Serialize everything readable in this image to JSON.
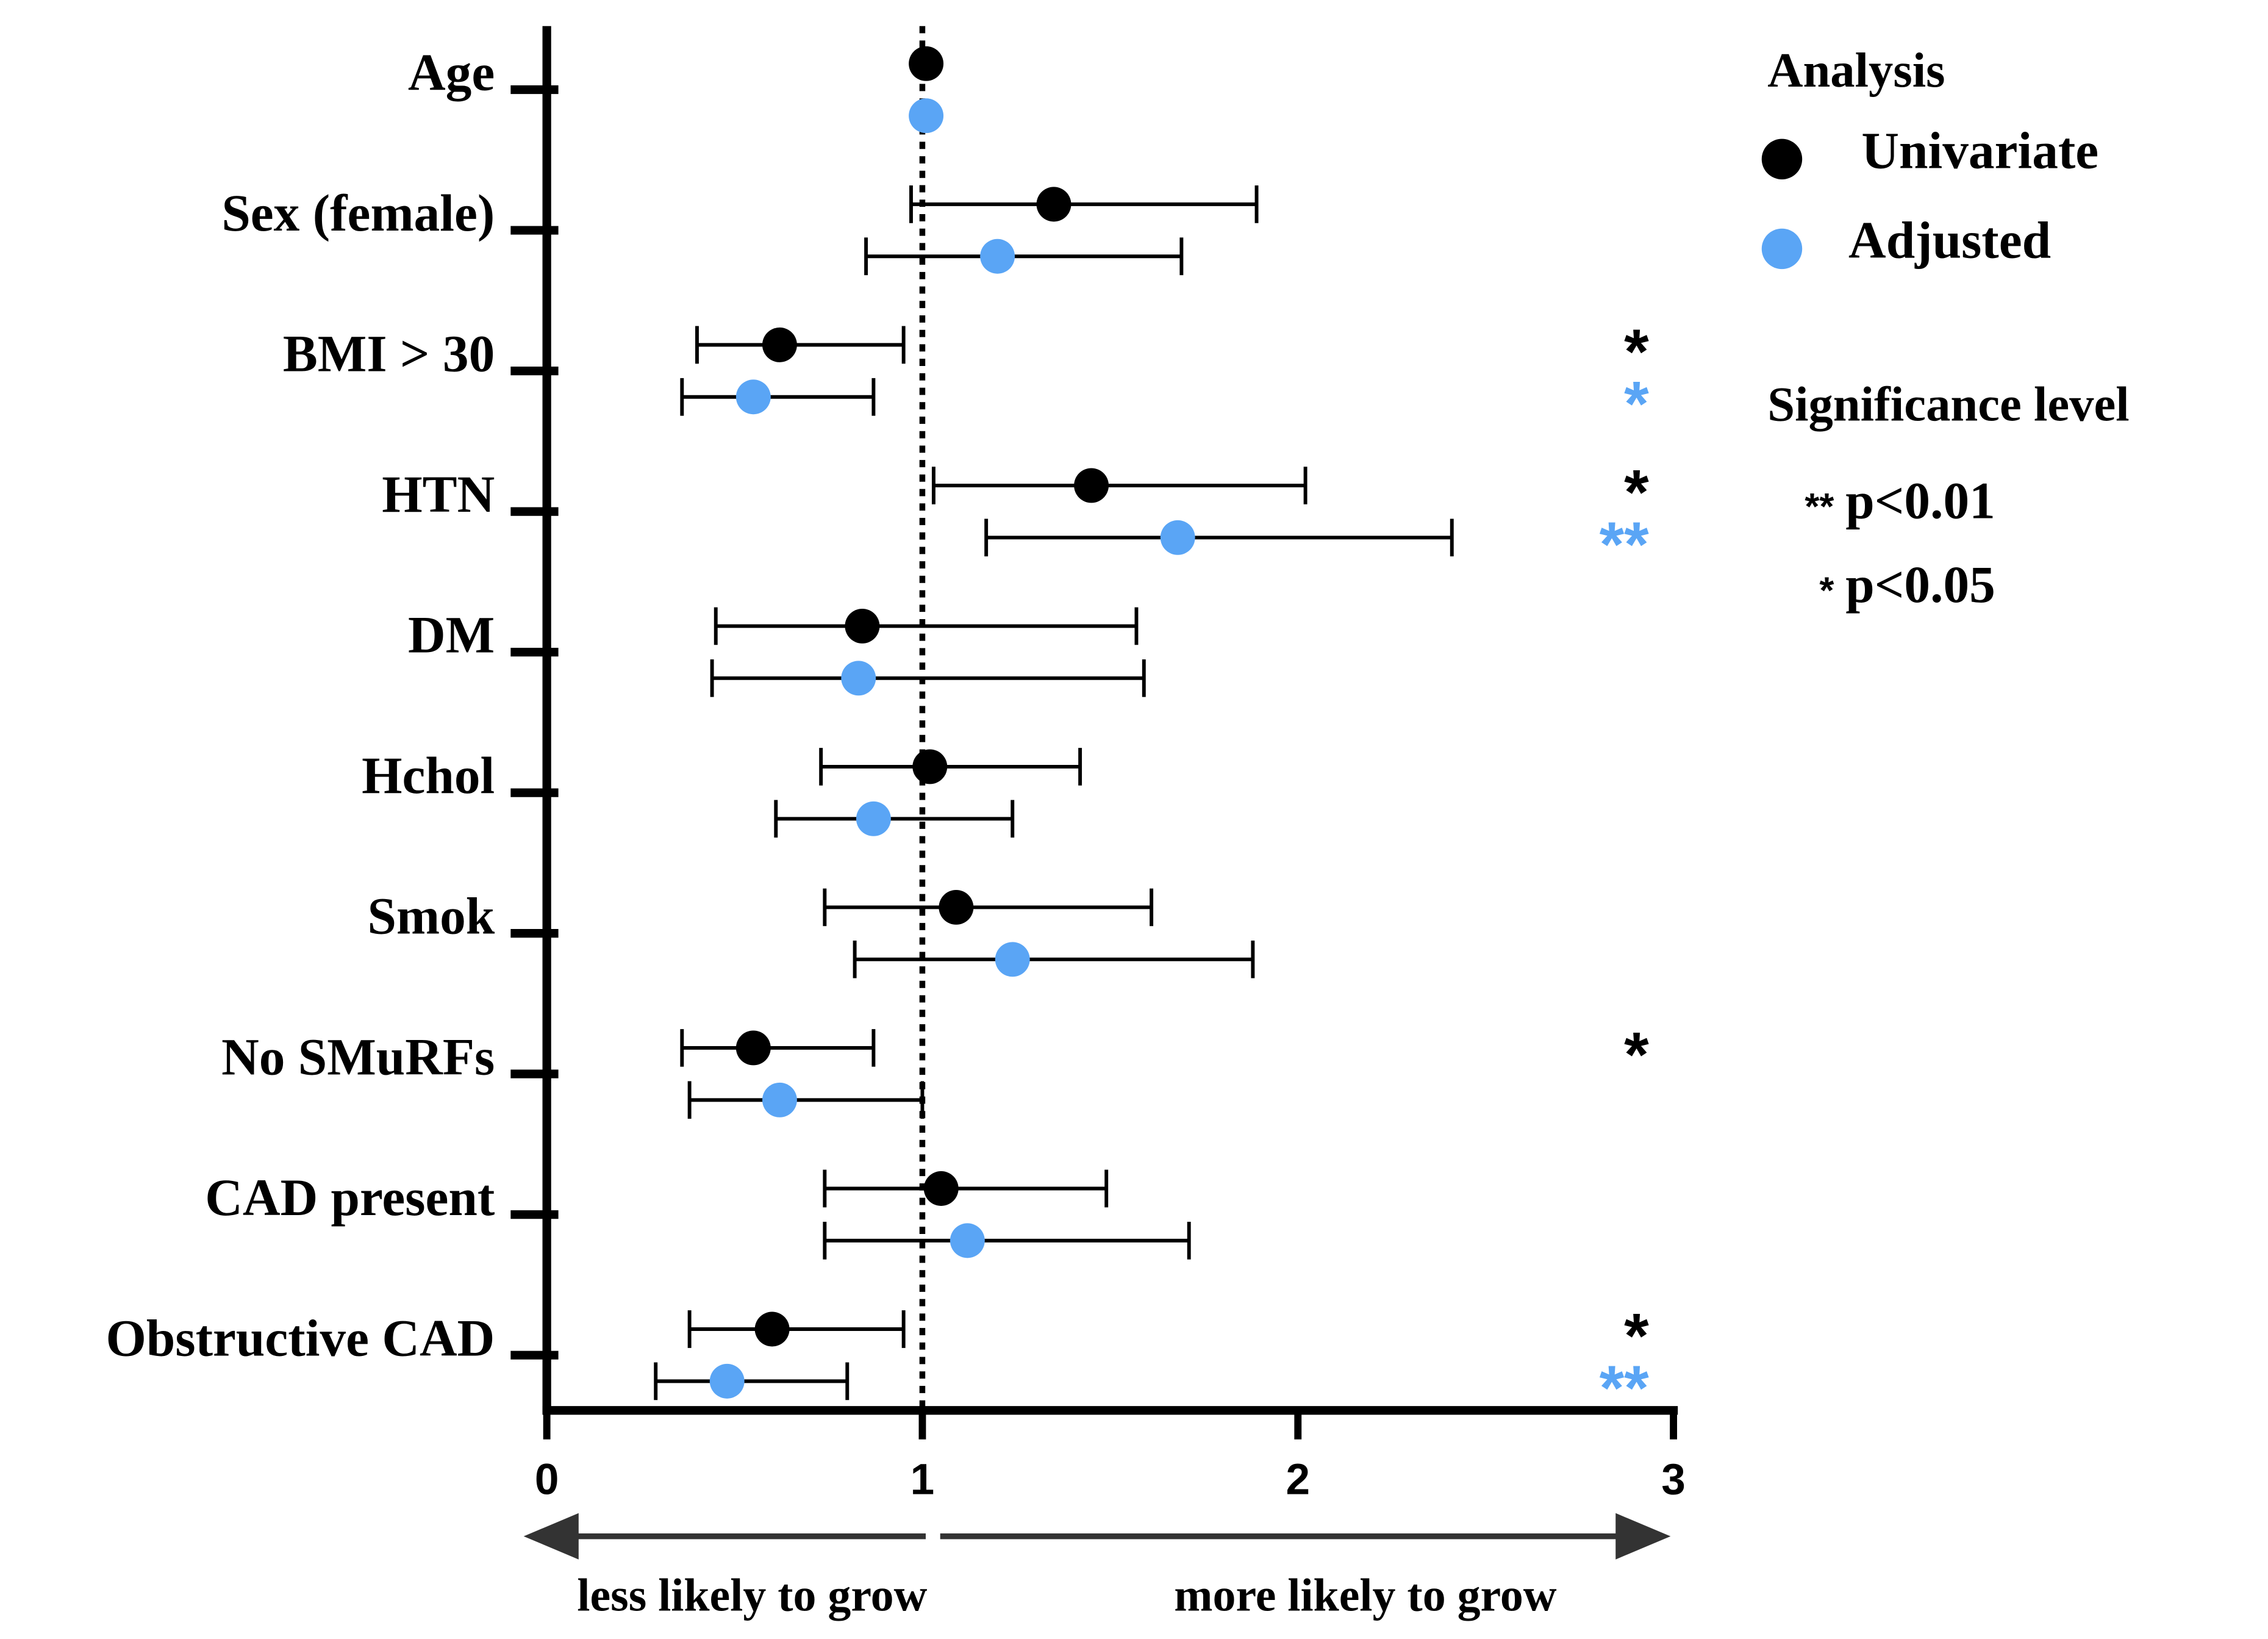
{
  "chart_data": {
    "type": "forest",
    "categories": [
      "Age",
      "Sex (female)",
      "BMI > 30",
      "HTN",
      "DM",
      "Hchol",
      "Smok",
      "No SMuRFs",
      "CAD present",
      "Obstructive CAD"
    ],
    "legend_title": "Analysis",
    "series": [
      {
        "name": "Univariate",
        "color": "#000000",
        "values": [
          1.01,
          1.35,
          0.62,
          1.45,
          0.84,
          1.02,
          1.09,
          0.55,
          1.05,
          0.6
        ],
        "lower": [
          null,
          0.97,
          0.4,
          1.03,
          0.45,
          0.73,
          0.74,
          0.36,
          0.74,
          0.38
        ],
        "upper": [
          null,
          1.89,
          0.95,
          2.02,
          1.57,
          1.42,
          1.61,
          0.87,
          1.49,
          0.95
        ],
        "significance": [
          null,
          null,
          "*",
          "*",
          null,
          null,
          null,
          "*",
          null,
          "*"
        ]
      },
      {
        "name": "Adjusted",
        "color": "#5aa5f5",
        "values": [
          1.01,
          1.2,
          0.55,
          1.68,
          0.83,
          0.87,
          1.24,
          0.62,
          1.12,
          0.48
        ],
        "lower": [
          null,
          0.85,
          0.36,
          1.17,
          0.44,
          0.61,
          0.82,
          0.38,
          0.74,
          0.29
        ],
        "upper": [
          null,
          1.69,
          0.87,
          2.41,
          1.59,
          1.24,
          1.88,
          1.0,
          1.71,
          0.8
        ],
        "significance": [
          null,
          null,
          "*",
          "**",
          null,
          null,
          null,
          null,
          null,
          "**"
        ]
      }
    ],
    "xlim": [
      0,
      3
    ],
    "xticks": [
      0,
      1,
      2,
      3
    ],
    "reference": 1,
    "significance_title": "Significance level",
    "significance_levels": [
      {
        "symbol": "**",
        "label": "p<0.01"
      },
      {
        "symbol": "*",
        "label": "p<0.05"
      }
    ],
    "arrow_labels": [
      "less likely to grow",
      "more likely to grow"
    ]
  }
}
